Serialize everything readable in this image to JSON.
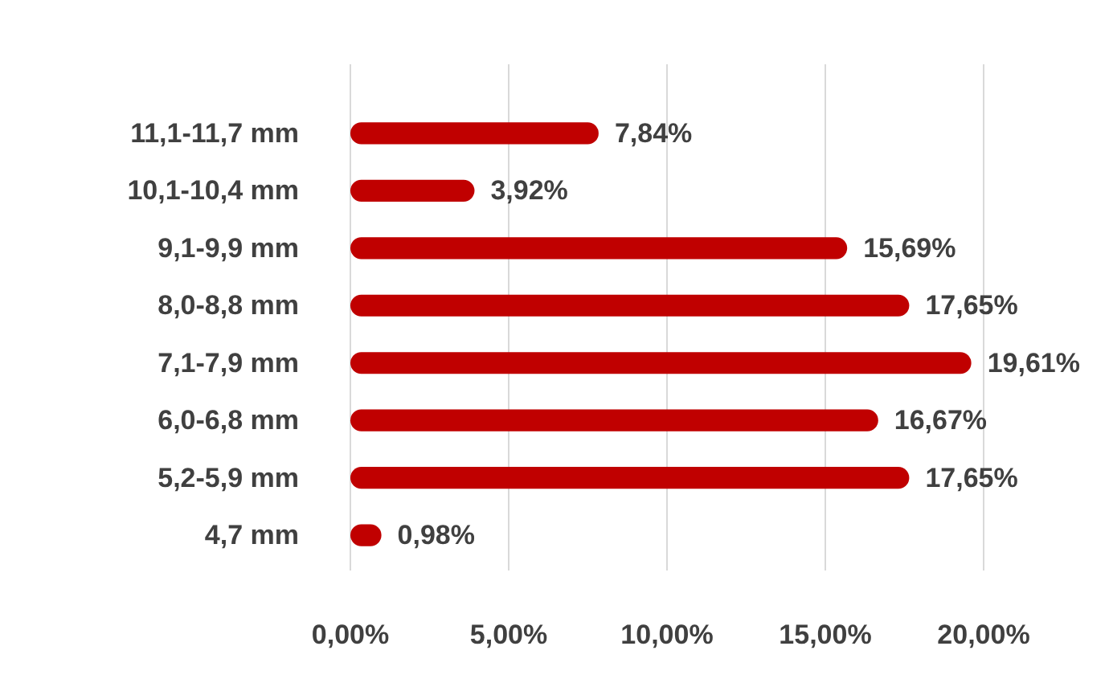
{
  "chart_data": {
    "type": "bar",
    "orientation": "horizontal",
    "categories": [
      "11,1-11,7 mm",
      "10,1-10,4 mm",
      "9,1-9,9 mm",
      "8,0-8,8 mm",
      "7,1-7,9 mm",
      "6,0-6,8 mm",
      "5,2-5,9 mm",
      "4,7 mm"
    ],
    "values": [
      7.84,
      3.92,
      15.69,
      17.65,
      19.61,
      16.67,
      17.65,
      0.98
    ],
    "value_labels": [
      "7,84%",
      "3,92%",
      "15,69%",
      "17,65%",
      "19,61%",
      "16,67%",
      "17,65%",
      "0,98%"
    ],
    "color": "#c00000",
    "xlim": [
      0,
      20
    ],
    "xticks": [
      {
        "value": 0,
        "label": "0,00%"
      },
      {
        "value": 5,
        "label": "5,00%"
      },
      {
        "value": 10,
        "label": "10,00%"
      },
      {
        "value": 15,
        "label": "15,00%"
      },
      {
        "value": 20,
        "label": "20,00%"
      }
    ],
    "grid": "x"
  }
}
